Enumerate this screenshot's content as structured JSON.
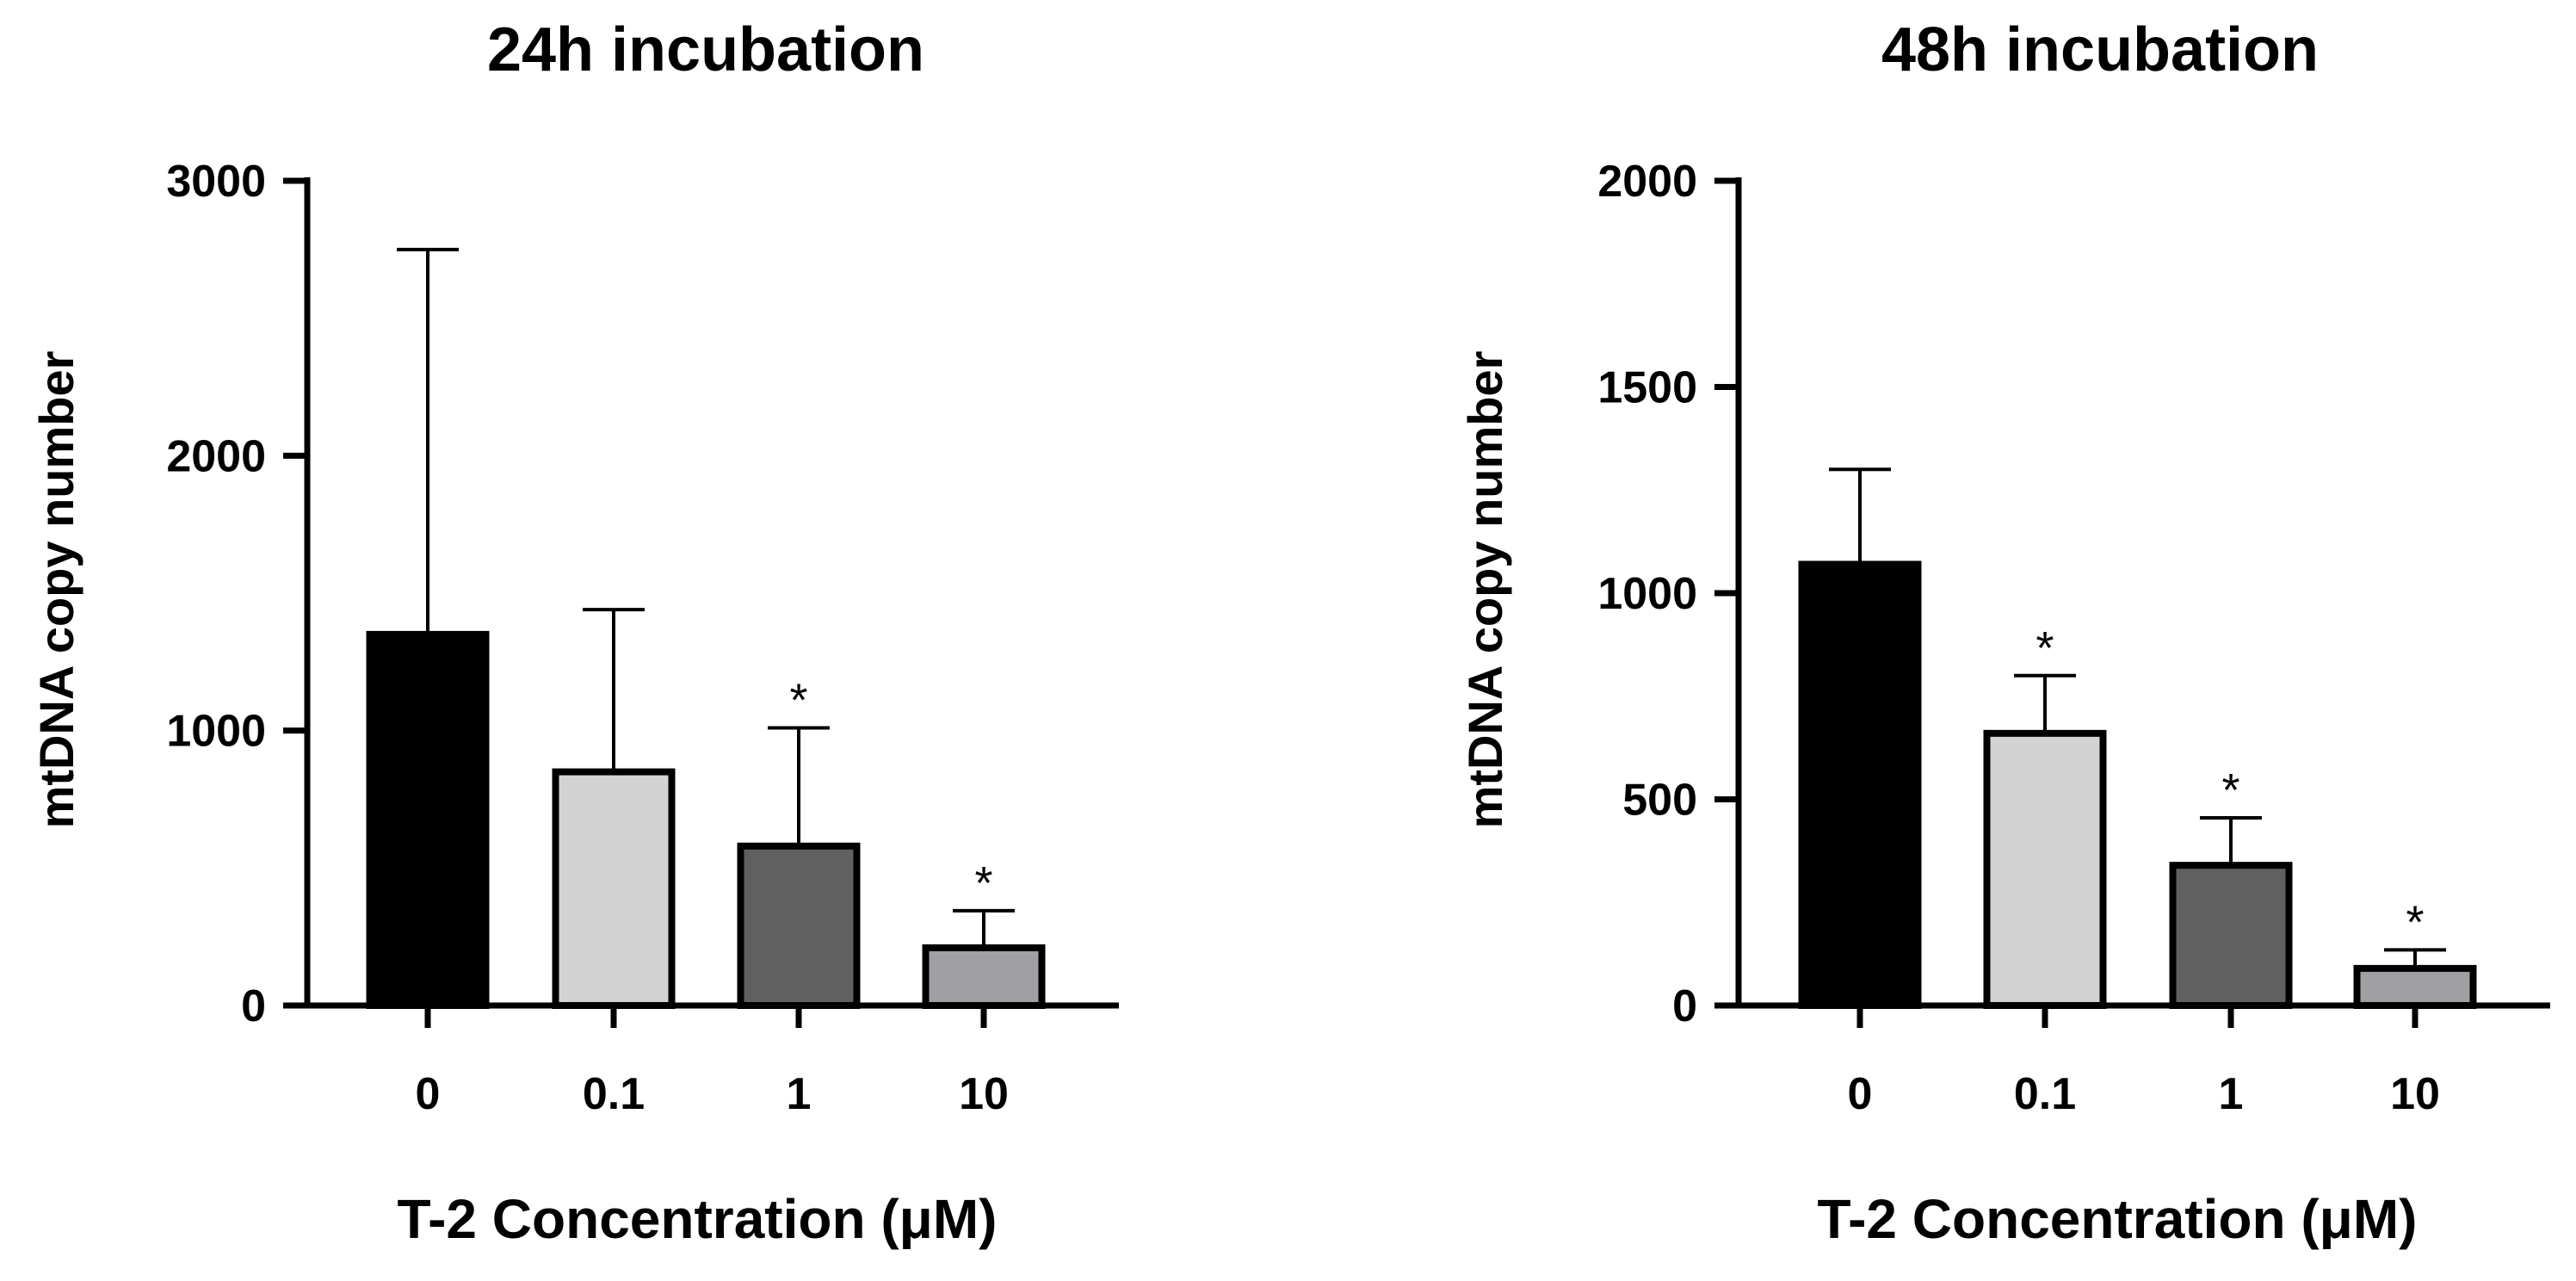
{
  "chart_data": [
    {
      "type": "bar",
      "title": "24h incubation",
      "xlabel": "T-2 Concentration (μM)",
      "ylabel": "mtDNA copy number",
      "ylim": [
        0,
        3000
      ],
      "yticks": [
        "0",
        "1000",
        "2000",
        "3000"
      ],
      "categories": [
        "0",
        "0.1",
        "1",
        "10"
      ],
      "values": [
        1350,
        850,
        580,
        210
      ],
      "errors": [
        1400,
        590,
        430,
        135
      ],
      "significance": [
        "",
        "",
        "*",
        "*"
      ],
      "bar_colors": [
        "#000000",
        "#d3d3d3",
        "#606060",
        "#a0a0a4"
      ]
    },
    {
      "type": "bar",
      "title": "48h incubation",
      "xlabel": "T-2 Concentration (μM)",
      "ylabel": "mtDNA copy number",
      "ylim": [
        0,
        2000
      ],
      "yticks": [
        "0",
        "500",
        "1000",
        "1500",
        "2000"
      ],
      "categories": [
        "0",
        "0.1",
        "1",
        "10"
      ],
      "values": [
        1070,
        660,
        340,
        90
      ],
      "errors": [
        230,
        140,
        115,
        45
      ],
      "significance": [
        "",
        "*",
        "*",
        "*"
      ],
      "bar_colors": [
        "#000000",
        "#d3d3d3",
        "#606060",
        "#a0a0a4"
      ]
    }
  ]
}
